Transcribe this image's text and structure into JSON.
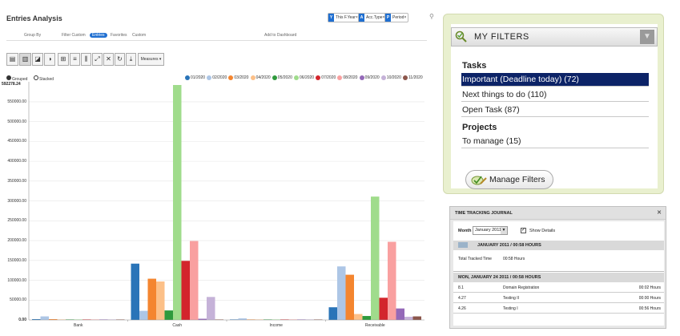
{
  "left": {
    "title": "Entries Analysis",
    "facets": [
      {
        "label": "This F.Year",
        "icon_letter": "Y"
      },
      {
        "label": "Acc.Type",
        "icon_letter": "A"
      },
      {
        "label": "Period",
        "icon_letter": "P"
      }
    ],
    "search_icon": "search-icon",
    "subline": {
      "group_by": "Group By",
      "filter": "Filter Custom",
      "active": "Entries",
      "favorites": "Favorites",
      "more": "Custom",
      "dashboard": "Add to Dashboard"
    },
    "toolbar": {
      "measures_label": "Measures ▾"
    },
    "mode": {
      "grouped": "Grouped",
      "stacked": "Stacked"
    },
    "top_value": "592278.24"
  },
  "chart_data": {
    "type": "bar",
    "categories": [
      "Bank",
      "Cash",
      "Income",
      "Receivable"
    ],
    "ylim": [
      0,
      592278.24
    ],
    "yticks": [
      "0.00",
      "50000.00",
      "100000.00",
      "150000.00",
      "200000.00",
      "250000.00",
      "300000.00",
      "350000.00",
      "400000.00",
      "450000.00",
      "500000.00",
      "550000.00"
    ],
    "series": [
      {
        "name": "01/2020",
        "color": "#2a74b8",
        "values": [
          1000,
          142000,
          0,
          32000
        ]
      },
      {
        "name": "02/2020",
        "color": "#adc6e6",
        "values": [
          9000,
          23000,
          4000,
          135000
        ]
      },
      {
        "name": "03/2020",
        "color": "#f4852f",
        "values": [
          1000,
          104000,
          0,
          114000
        ]
      },
      {
        "name": "04/2020",
        "color": "#fcc088",
        "values": [
          0,
          97000,
          0,
          15000
        ]
      },
      {
        "name": "05/2020",
        "color": "#2f9a3d",
        "values": [
          0,
          24000,
          0,
          10000
        ]
      },
      {
        "name": "06/2020",
        "color": "#a0dc8c",
        "values": [
          0,
          592278.24,
          0,
          311000
        ]
      },
      {
        "name": "07/2020",
        "color": "#d3252c",
        "values": [
          0,
          149000,
          0,
          56000
        ]
      },
      {
        "name": "08/2020",
        "color": "#f9a0a0",
        "values": [
          0,
          199000,
          0,
          197000
        ]
      },
      {
        "name": "09/2020",
        "color": "#9469b8",
        "values": [
          0,
          3000,
          0,
          29000
        ]
      },
      {
        "name": "10/2020",
        "color": "#c5b2d8",
        "values": [
          0,
          58000,
          0,
          8000
        ]
      },
      {
        "name": "11/2020",
        "color": "#8c564b",
        "values": [
          0,
          0,
          0,
          9000
        ]
      }
    ]
  },
  "filters": {
    "title": "MY FILTERS",
    "tasks_heading": "Tasks",
    "tasks": [
      "Important (Deadline today) (72)",
      "Next things to do (110)",
      "Open Task (87)"
    ],
    "projects_heading": "Projects",
    "projects": [
      "To manage (15)"
    ],
    "manage_label": "Manage Filters"
  },
  "timetracking": {
    "title": "TIME TRACKING JOURNAL",
    "close": "✕",
    "month_label": "Month",
    "month_value": "January 2011",
    "show_details": "Show Details",
    "month_summary": "JANUARY 2011  /  00:58 HOURS",
    "total_label": "Total Tracked Time",
    "total_value": "00:58 Hours",
    "day_header": "MON, JANUARY 24 2011  /  00:58 HOURS",
    "rows": [
      {
        "id": "8.1",
        "task": "Domain Registration",
        "hours": "00:02 Hours"
      },
      {
        "id": "4.27",
        "task": "Testing II",
        "hours": "00:00 Hours"
      },
      {
        "id": "4.26",
        "task": "Testing I",
        "hours": "00:56 Hours"
      }
    ]
  }
}
